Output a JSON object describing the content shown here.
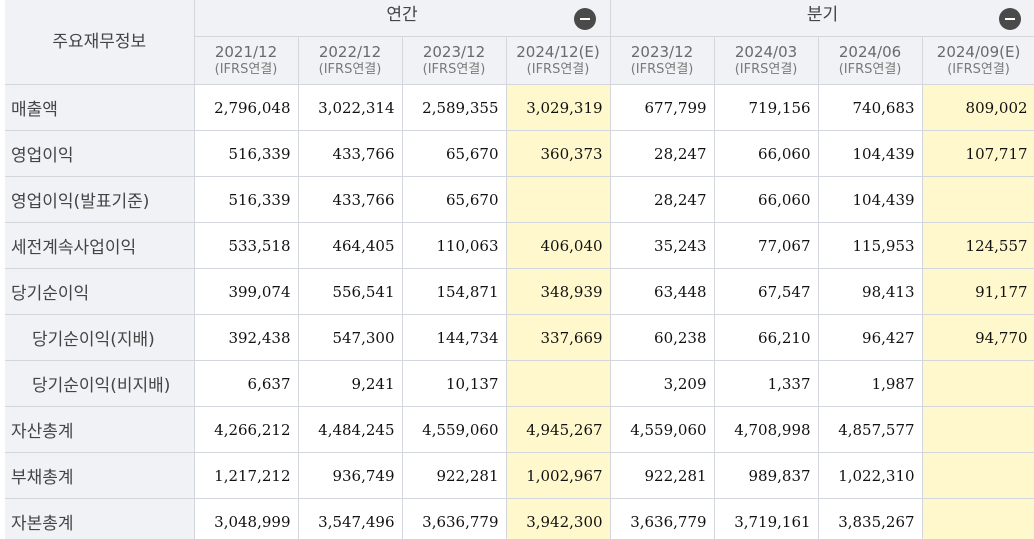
{
  "header": {
    "corner_label": "주요재무정보",
    "groups": [
      {
        "label": "연간",
        "toggle_icon": "collapse-minus-icon"
      },
      {
        "label": "분기",
        "toggle_icon": "collapse-minus-icon"
      }
    ],
    "periods": [
      {
        "date": "2021/12",
        "basis": "(IFRS연결)",
        "estimate": false
      },
      {
        "date": "2022/12",
        "basis": "(IFRS연결)",
        "estimate": false
      },
      {
        "date": "2023/12",
        "basis": "(IFRS연결)",
        "estimate": false
      },
      {
        "date": "2024/12(E)",
        "basis": "(IFRS연결)",
        "estimate": true
      },
      {
        "date": "2023/12",
        "basis": "(IFRS연결)",
        "estimate": false
      },
      {
        "date": "2024/03",
        "basis": "(IFRS연결)",
        "estimate": false
      },
      {
        "date": "2024/06",
        "basis": "(IFRS연결)",
        "estimate": false
      },
      {
        "date": "2024/09(E)",
        "basis": "(IFRS연결)",
        "estimate": true
      }
    ]
  },
  "rows": [
    {
      "label": "매출액",
      "sub": false,
      "values": [
        "2,796,048",
        "3,022,314",
        "2,589,355",
        "3,029,319",
        "677,799",
        "719,156",
        "740,683",
        "809,002"
      ]
    },
    {
      "label": "영업이익",
      "sub": false,
      "values": [
        "516,339",
        "433,766",
        "65,670",
        "360,373",
        "28,247",
        "66,060",
        "104,439",
        "107,717"
      ]
    },
    {
      "label": "영업이익(발표기준)",
      "sub": false,
      "values": [
        "516,339",
        "433,766",
        "65,670",
        "",
        "28,247",
        "66,060",
        "104,439",
        ""
      ]
    },
    {
      "label": "세전계속사업이익",
      "sub": false,
      "values": [
        "533,518",
        "464,405",
        "110,063",
        "406,040",
        "35,243",
        "77,067",
        "115,953",
        "124,557"
      ]
    },
    {
      "label": "당기순이익",
      "sub": false,
      "values": [
        "399,074",
        "556,541",
        "154,871",
        "348,939",
        "63,448",
        "67,547",
        "98,413",
        "91,177"
      ]
    },
    {
      "label": "당기순이익(지배)",
      "sub": true,
      "values": [
        "392,438",
        "547,300",
        "144,734",
        "337,669",
        "60,238",
        "66,210",
        "96,427",
        "94,770"
      ]
    },
    {
      "label": "당기순이익(비지배)",
      "sub": true,
      "values": [
        "6,637",
        "9,241",
        "10,137",
        "",
        "3,209",
        "1,337",
        "1,987",
        ""
      ]
    },
    {
      "label": "자산총계",
      "sub": false,
      "values": [
        "4,266,212",
        "4,484,245",
        "4,559,060",
        "4,945,267",
        "4,559,060",
        "4,708,998",
        "4,857,577",
        ""
      ]
    },
    {
      "label": "부채총계",
      "sub": false,
      "values": [
        "1,217,212",
        "936,749",
        "922,281",
        "1,002,967",
        "922,281",
        "989,837",
        "1,022,310",
        ""
      ]
    },
    {
      "label": "자본총계",
      "sub": false,
      "values": [
        "3,048,999",
        "3,547,496",
        "3,636,779",
        "3,942,300",
        "3,636,779",
        "3,719,161",
        "3,835,267",
        ""
      ]
    }
  ],
  "colors": {
    "header_bg": "#f1f2f5",
    "estimate_cell_bg": "#fff8cc",
    "border": "#d3d6dc",
    "toggle_bg": "#4a4a4a"
  }
}
